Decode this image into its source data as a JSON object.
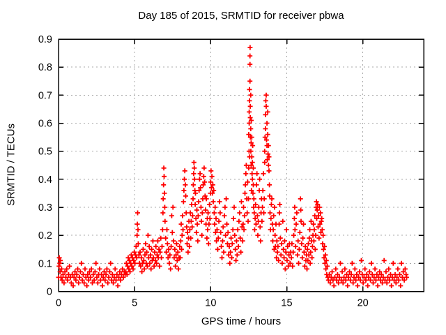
{
  "chart_data": {
    "type": "scatter",
    "title": "Day 185 of 2015, SRMTID for receiver pbwa",
    "xlabel": "GPS time / hours",
    "ylabel": "SRMTID / TECUs",
    "xlim": [
      0,
      24
    ],
    "ylim": [
      0,
      0.9
    ],
    "xticks": [
      0,
      5,
      10,
      15,
      20
    ],
    "xtick_labels": [
      "0",
      "5",
      "10",
      "15",
      "20"
    ],
    "yticks": [
      0,
      0.1,
      0.2,
      0.3,
      0.4,
      0.5,
      0.6,
      0.7,
      0.8,
      0.9
    ],
    "ytick_labels": [
      "0",
      "0.1",
      "0.2",
      "0.3",
      "0.4",
      "0.5",
      "0.6",
      "0.7",
      "0.8",
      "0.9"
    ],
    "grid": true,
    "legend": "none",
    "marker": {
      "shape": "plus",
      "color": "#ff0000",
      "size": 7
    },
    "colors": {
      "background": "#ffffff",
      "axis": "#000000",
      "grid": "#a8a8a8"
    },
    "points": [
      0.0,
      0.05,
      0.03,
      0.09,
      0.05,
      0.12,
      0.08,
      0.1,
      0.1,
      0.07,
      0.12,
      0.11,
      0.16,
      0.05,
      0.2,
      0.08,
      0.24,
      0.04,
      0.3,
      0.06,
      0.36,
      0.03,
      0.42,
      0.07,
      0.48,
      0.05,
      0.54,
      0.08,
      0.6,
      0.04,
      0.66,
      0.06,
      0.72,
      0.09,
      0.78,
      0.05,
      0.84,
      0.03,
      0.9,
      0.06,
      0.96,
      0.02,
      1.02,
      0.05,
      1.08,
      0.07,
      1.14,
      0.04,
      1.2,
      0.06,
      1.26,
      0.08,
      1.32,
      0.03,
      1.38,
      0.05,
      1.44,
      0.07,
      1.5,
      0.1,
      1.56,
      0.04,
      1.62,
      0.06,
      1.68,
      0.03,
      1.74,
      0.08,
      1.8,
      0.05,
      1.86,
      0.02,
      1.92,
      0.06,
      1.98,
      0.04,
      2.04,
      0.07,
      2.1,
      0.05,
      2.16,
      0.08,
      2.22,
      0.03,
      2.28,
      0.06,
      2.34,
      0.04,
      2.4,
      0.07,
      2.46,
      0.1,
      2.52,
      0.05,
      2.58,
      0.03,
      2.64,
      0.06,
      2.7,
      0.08,
      2.76,
      0.04,
      2.82,
      0.06,
      2.88,
      0.02,
      2.94,
      0.05,
      3.0,
      0.07,
      3.06,
      0.04,
      3.12,
      0.06,
      3.18,
      0.08,
      3.24,
      0.03,
      3.3,
      0.05,
      3.36,
      0.07,
      3.42,
      0.1,
      3.48,
      0.04,
      3.54,
      0.06,
      3.6,
      0.03,
      3.66,
      0.05,
      3.72,
      0.08,
      3.78,
      0.04,
      3.84,
      0.06,
      3.9,
      0.02,
      3.96,
      0.05,
      4.02,
      0.07,
      4.08,
      0.04,
      4.14,
      0.06,
      4.2,
      0.08,
      4.26,
      0.05,
      4.32,
      0.07,
      4.38,
      0.06,
      4.42,
      0.07,
      4.46,
      0.1,
      4.5,
      0.06,
      4.54,
      0.09,
      4.58,
      0.12,
      4.62,
      0.08,
      4.66,
      0.11,
      4.7,
      0.07,
      4.74,
      0.1,
      4.78,
      0.13,
      4.82,
      0.09,
      4.86,
      0.12,
      4.9,
      0.08,
      4.94,
      0.11,
      4.98,
      0.14,
      5.02,
      0.1,
      5.06,
      0.13,
      5.1,
      0.16,
      5.14,
      0.12,
      5.16,
      0.2,
      5.18,
      0.24,
      5.2,
      0.28,
      5.22,
      0.22,
      5.24,
      0.17,
      5.28,
      0.13,
      5.32,
      0.1,
      5.36,
      0.14,
      5.4,
      0.09,
      5.44,
      0.12,
      5.48,
      0.07,
      5.52,
      0.1,
      5.56,
      0.15,
      5.6,
      0.11,
      5.64,
      0.08,
      5.68,
      0.13,
      5.72,
      0.17,
      5.76,
      0.1,
      5.8,
      0.14,
      5.84,
      0.09,
      5.88,
      0.2,
      5.92,
      0.12,
      5.96,
      0.16,
      6.0,
      0.1,
      6.04,
      0.13,
      6.08,
      0.08,
      6.12,
      0.15,
      6.16,
      0.11,
      6.2,
      0.18,
      6.24,
      0.12,
      6.28,
      0.09,
      6.32,
      0.14,
      6.36,
      0.11,
      6.4,
      0.16,
      6.44,
      0.1,
      6.48,
      0.13,
      6.52,
      0.18,
      6.56,
      0.12,
      6.6,
      0.15,
      6.64,
      0.09,
      6.68,
      0.14,
      6.72,
      0.19,
      6.76,
      0.12,
      6.8,
      0.16,
      6.84,
      0.22,
      6.86,
      0.28,
      6.88,
      0.33,
      6.9,
      0.38,
      6.92,
      0.44,
      6.94,
      0.41,
      6.96,
      0.35,
      6.98,
      0.3,
      7.0,
      0.25,
      7.04,
      0.19,
      7.08,
      0.14,
      7.12,
      0.22,
      7.16,
      0.17,
      7.2,
      0.12,
      7.24,
      0.15,
      7.28,
      0.1,
      7.32,
      0.13,
      7.36,
      0.08,
      7.4,
      0.16,
      7.44,
      0.27,
      7.48,
      0.21,
      7.52,
      0.3,
      7.56,
      0.18,
      7.6,
      0.12,
      7.64,
      0.15,
      7.68,
      0.09,
      7.72,
      0.13,
      7.76,
      0.17,
      7.8,
      0.11,
      7.84,
      0.14,
      7.88,
      0.08,
      7.92,
      0.12,
      7.96,
      0.16,
      8.0,
      0.12,
      8.03,
      0.18,
      8.06,
      0.24,
      8.09,
      0.15,
      8.12,
      0.2,
      8.15,
      0.27,
      8.18,
      0.22,
      8.21,
      0.32,
      8.24,
      0.36,
      8.27,
      0.4,
      8.3,
      0.43,
      8.33,
      0.38,
      8.36,
      0.34,
      8.39,
      0.28,
      8.42,
      0.23,
      8.45,
      0.17,
      8.48,
      0.21,
      8.51,
      0.14,
      8.54,
      0.19,
      8.57,
      0.25,
      8.6,
      0.16,
      8.63,
      0.22,
      8.66,
      0.28,
      8.69,
      0.19,
      8.72,
      0.25,
      8.75,
      0.31,
      8.78,
      0.23,
      8.81,
      0.27,
      8.84,
      0.33,
      8.86,
      0.38,
      8.88,
      0.42,
      8.9,
      0.46,
      8.92,
      0.44,
      8.94,
      0.4,
      8.96,
      0.36,
      8.98,
      0.31,
      9.0,
      0.35,
      9.03,
      0.26,
      9.06,
      0.21,
      9.09,
      0.29,
      9.12,
      0.24,
      9.15,
      0.18,
      9.18,
      0.27,
      9.21,
      0.32,
      9.24,
      0.36,
      9.27,
      0.4,
      9.3,
      0.42,
      9.33,
      0.37,
      9.36,
      0.3,
      9.39,
      0.25,
      9.42,
      0.2,
      9.45,
      0.28,
      9.48,
      0.33,
      9.51,
      0.38,
      9.54,
      0.41,
      9.57,
      0.44,
      9.6,
      0.39,
      9.63,
      0.34,
      9.66,
      0.29,
      9.69,
      0.24,
      9.72,
      0.33,
      9.75,
      0.19,
      9.78,
      0.26,
      9.8,
      0.22,
      9.83,
      0.28,
      9.86,
      0.17,
      9.89,
      0.24,
      9.92,
      0.31,
      9.95,
      0.26,
      9.98,
      0.35,
      10.0,
      0.39,
      10.02,
      0.43,
      10.05,
      0.37,
      10.08,
      0.41,
      10.11,
      0.35,
      10.14,
      0.38,
      10.17,
      0.32,
      10.2,
      0.36,
      10.23,
      0.28,
      10.26,
      0.24,
      10.29,
      0.3,
      10.32,
      0.21,
      10.35,
      0.26,
      10.38,
      0.18,
      10.42,
      0.22,
      10.46,
      0.15,
      10.5,
      0.19,
      10.54,
      0.25,
      10.58,
      0.32,
      10.62,
      0.28,
      10.66,
      0.21,
      10.7,
      0.16,
      10.74,
      0.12,
      10.78,
      0.18,
      10.82,
      0.23,
      10.86,
      0.14,
      10.9,
      0.27,
      10.94,
      0.3,
      10.98,
      0.2,
      11.02,
      0.33,
      11.06,
      0.24,
      11.1,
      0.17,
      11.14,
      0.21,
      11.18,
      0.13,
      11.22,
      0.16,
      11.26,
      0.1,
      11.3,
      0.14,
      11.34,
      0.19,
      11.38,
      0.12,
      11.42,
      0.17,
      11.46,
      0.22,
      11.5,
      0.26,
      11.54,
      0.3,
      11.58,
      0.2,
      11.62,
      0.15,
      11.66,
      0.11,
      11.7,
      0.18,
      11.74,
      0.13,
      11.78,
      0.22,
      11.82,
      0.16,
      11.86,
      0.25,
      11.9,
      0.28,
      11.94,
      0.19,
      11.98,
      0.14,
      12.02,
      0.32,
      12.06,
      0.23,
      12.1,
      0.18,
      12.13,
      0.24,
      12.16,
      0.3,
      12.19,
      0.22,
      12.22,
      0.27,
      12.25,
      0.35,
      12.28,
      0.38,
      12.31,
      0.42,
      12.34,
      0.45,
      12.37,
      0.33,
      12.4,
      0.28,
      12.43,
      0.39,
      12.46,
      0.25,
      12.48,
      0.33,
      12.5,
      0.44,
      12.5,
      0.56,
      12.52,
      0.5,
      12.53,
      0.6,
      12.53,
      0.64,
      12.55,
      0.68,
      12.55,
      0.72,
      12.56,
      0.48,
      12.58,
      0.75,
      12.58,
      0.81,
      12.58,
      0.84,
      12.59,
      0.87,
      12.6,
      0.62,
      12.6,
      0.66,
      12.61,
      0.55,
      12.63,
      0.58,
      12.63,
      0.7,
      12.64,
      0.5,
      12.66,
      0.45,
      12.66,
      0.53,
      12.67,
      0.61,
      12.68,
      0.36,
      12.7,
      0.48,
      12.7,
      0.55,
      12.72,
      0.42,
      12.74,
      0.4,
      12.74,
      0.46,
      12.76,
      0.52,
      12.78,
      0.35,
      12.8,
      0.38,
      12.8,
      0.44,
      12.82,
      0.3,
      12.84,
      0.33,
      12.86,
      0.28,
      12.89,
      0.22,
      12.92,
      0.26,
      12.95,
      0.31,
      12.98,
      0.24,
      13.01,
      0.38,
      13.04,
      0.42,
      13.07,
      0.27,
      13.1,
      0.2,
      13.13,
      0.25,
      13.16,
      0.3,
      13.19,
      0.36,
      13.22,
      0.4,
      13.25,
      0.23,
      13.28,
      0.18,
      13.31,
      0.28,
      13.34,
      0.33,
      13.37,
      0.25,
      13.4,
      0.3,
      13.43,
      0.36,
      13.46,
      0.42,
      13.49,
      0.28,
      13.52,
      0.33,
      13.55,
      0.46,
      13.55,
      0.5,
      13.57,
      0.55,
      13.6,
      0.58,
      13.6,
      0.63,
      13.62,
      0.68,
      13.65,
      0.7,
      13.65,
      0.66,
      13.67,
      0.54,
      13.7,
      0.6,
      13.7,
      0.52,
      13.72,
      0.47,
      13.75,
      0.56,
      13.75,
      0.64,
      13.77,
      0.49,
      13.8,
      0.45,
      13.8,
      0.52,
      13.83,
      0.43,
      13.83,
      0.48,
      13.86,
      0.38,
      13.88,
      0.34,
      13.9,
      0.28,
      13.93,
      0.22,
      13.96,
      0.26,
      13.99,
      0.31,
      14.02,
      0.33,
      14.05,
      0.24,
      14.08,
      0.18,
      14.11,
      0.22,
      14.14,
      0.27,
      14.17,
      0.15,
      14.2,
      0.3,
      14.23,
      0.2,
      14.26,
      0.16,
      14.29,
      0.24,
      14.32,
      0.12,
      14.35,
      0.18,
      14.38,
      0.14,
      14.42,
      0.16,
      14.46,
      0.11,
      14.5,
      0.24,
      14.52,
      0.28,
      14.54,
      0.31,
      14.58,
      0.19,
      14.62,
      0.13,
      14.66,
      0.17,
      14.7,
      0.1,
      14.74,
      0.25,
      14.78,
      0.15,
      14.82,
      0.12,
      14.86,
      0.18,
      14.9,
      0.08,
      14.94,
      0.14,
      14.98,
      0.22,
      15.02,
      0.11,
      15.06,
      0.16,
      15.1,
      0.09,
      15.14,
      0.13,
      15.18,
      0.17,
      15.22,
      0.1,
      15.26,
      0.14,
      15.3,
      0.12,
      15.34,
      0.17,
      15.38,
      0.09,
      15.42,
      0.14,
      15.46,
      0.2,
      15.5,
      0.26,
      15.52,
      0.3,
      15.54,
      0.22,
      15.58,
      0.16,
      15.62,
      0.24,
      15.66,
      0.28,
      15.7,
      0.13,
      15.74,
      0.18,
      15.78,
      0.1,
      15.82,
      0.15,
      15.86,
      0.21,
      15.9,
      0.33,
      15.92,
      0.29,
      15.94,
      0.25,
      15.98,
      0.17,
      16.02,
      0.12,
      16.06,
      0.19,
      16.1,
      0.24,
      16.14,
      0.14,
      16.18,
      0.09,
      16.22,
      0.16,
      16.26,
      0.11,
      16.3,
      0.13,
      16.33,
      0.08,
      16.36,
      0.15,
      16.39,
      0.11,
      16.42,
      0.17,
      16.45,
      0.13,
      16.48,
      0.19,
      16.51,
      0.22,
      16.54,
      0.1,
      16.57,
      0.14,
      16.6,
      0.25,
      16.63,
      0.18,
      16.66,
      0.12,
      16.69,
      0.16,
      16.72,
      0.2,
      16.75,
      0.24,
      16.78,
      0.18,
      16.81,
      0.22,
      16.84,
      0.27,
      16.87,
      0.15,
      16.9,
      0.2,
      16.93,
      0.3,
      16.95,
      0.32,
      16.97,
      0.26,
      17.0,
      0.29,
      17.03,
      0.31,
      17.06,
      0.23,
      17.09,
      0.27,
      17.12,
      0.19,
      17.15,
      0.3,
      17.18,
      0.24,
      17.21,
      0.28,
      17.24,
      0.21,
      17.27,
      0.25,
      17.3,
      0.26,
      17.33,
      0.22,
      17.36,
      0.17,
      17.39,
      0.2,
      17.42,
      0.15,
      17.45,
      0.12,
      17.48,
      0.16,
      17.51,
      0.1,
      17.54,
      0.13,
      17.57,
      0.08,
      17.6,
      0.11,
      17.63,
      0.06,
      17.66,
      0.09,
      17.7,
      0.05,
      17.74,
      0.04,
      17.8,
      0.06,
      17.86,
      0.03,
      17.92,
      0.05,
      17.98,
      0.07,
      18.04,
      0.04,
      18.1,
      0.02,
      18.16,
      0.05,
      18.22,
      0.08,
      18.28,
      0.04,
      18.34,
      0.06,
      18.4,
      0.03,
      18.46,
      0.05,
      18.52,
      0.1,
      18.58,
      0.04,
      18.64,
      0.07,
      18.7,
      0.03,
      18.76,
      0.05,
      18.82,
      0.08,
      18.88,
      0.04,
      18.94,
      0.06,
      19.0,
      0.02,
      19.06,
      0.05,
      19.12,
      0.07,
      19.18,
      0.04,
      19.24,
      0.06,
      19.3,
      0.1,
      19.36,
      0.03,
      19.42,
      0.05,
      19.48,
      0.08,
      19.54,
      0.04,
      19.6,
      0.06,
      19.66,
      0.02,
      19.72,
      0.05,
      19.78,
      0.07,
      19.84,
      0.04,
      19.9,
      0.11,
      19.96,
      0.06,
      20.02,
      0.03,
      20.08,
      0.05,
      20.14,
      0.08,
      20.2,
      0.04,
      20.26,
      0.06,
      20.32,
      0.02,
      20.38,
      0.05,
      20.44,
      0.07,
      20.5,
      0.04,
      20.56,
      0.1,
      20.62,
      0.06,
      20.68,
      0.03,
      20.74,
      0.05,
      20.8,
      0.08,
      20.86,
      0.04,
      20.92,
      0.06,
      20.98,
      0.02,
      21.04,
      0.05,
      21.1,
      0.07,
      21.16,
      0.04,
      21.22,
      0.06,
      21.28,
      0.03,
      21.34,
      0.05,
      21.4,
      0.11,
      21.46,
      0.04,
      21.52,
      0.07,
      21.58,
      0.03,
      21.64,
      0.05,
      21.7,
      0.08,
      21.76,
      0.04,
      21.82,
      0.06,
      21.88,
      0.02,
      21.94,
      0.05,
      22.0,
      0.1,
      22.06,
      0.04,
      22.12,
      0.06,
      22.18,
      0.03,
      22.24,
      0.05,
      22.3,
      0.08,
      22.36,
      0.04,
      22.42,
      0.06,
      22.48,
      0.02,
      22.54,
      0.1,
      22.6,
      0.05,
      22.66,
      0.07,
      22.72,
      0.04,
      22.78,
      0.08,
      22.84,
      0.06,
      22.88,
      0.05
    ]
  }
}
